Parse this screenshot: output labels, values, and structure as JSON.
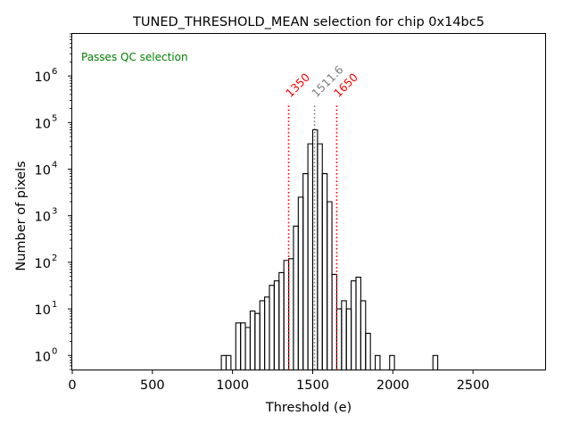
{
  "chart_data": {
    "type": "histogram",
    "title": "TUNED_THRESHOLD_MEAN selection for chip 0x14bc5",
    "xlabel": "Threshold (e)",
    "ylabel": "Number of pixels",
    "xlim": [
      0,
      2950
    ],
    "ylim": [
      0.5,
      8000000
    ],
    "yscale": "log",
    "grid": false,
    "x_ticks": [
      0,
      500,
      1000,
      1500,
      2000,
      2500
    ],
    "x_tick_labels": [
      "0",
      "500",
      "1000",
      "1500",
      "2000",
      "2500"
    ],
    "y_ticks": [
      1,
      10,
      100,
      1000,
      10000,
      100000,
      1000000
    ],
    "y_tick_labels": [
      {
        "base": "10",
        "exp": "0"
      },
      {
        "base": "10",
        "exp": "1"
      },
      {
        "base": "10",
        "exp": "2"
      },
      {
        "base": "10",
        "exp": "3"
      },
      {
        "base": "10",
        "exp": "4"
      },
      {
        "base": "10",
        "exp": "5"
      },
      {
        "base": "10",
        "exp": "6"
      }
    ],
    "annotation": {
      "text": "Passes QC selection",
      "color": "#008000"
    },
    "cut_lines": [
      {
        "x": 1350,
        "label": "1350",
        "color": "#ff0000",
        "style": "dotted"
      },
      {
        "x": 1511.6,
        "label": "1511.6",
        "color": "#808080",
        "style": "dotted"
      },
      {
        "x": 1650,
        "label": "1650",
        "color": "#ff0000",
        "style": "dotted"
      }
    ],
    "bin_width": 30,
    "bins": [
      {
        "x": 930,
        "count": 1
      },
      {
        "x": 960,
        "count": 1
      },
      {
        "x": 1020,
        "count": 5
      },
      {
        "x": 1050,
        "count": 5
      },
      {
        "x": 1080,
        "count": 4
      },
      {
        "x": 1110,
        "count": 9
      },
      {
        "x": 1140,
        "count": 8
      },
      {
        "x": 1170,
        "count": 15
      },
      {
        "x": 1200,
        "count": 18
      },
      {
        "x": 1230,
        "count": 32
      },
      {
        "x": 1260,
        "count": 40
      },
      {
        "x": 1290,
        "count": 60
      },
      {
        "x": 1320,
        "count": 110
      },
      {
        "x": 1350,
        "count": 120
      },
      {
        "x": 1380,
        "count": 600
      },
      {
        "x": 1410,
        "count": 2500
      },
      {
        "x": 1440,
        "count": 8000
      },
      {
        "x": 1470,
        "count": 35000
      },
      {
        "x": 1500,
        "count": 70000
      },
      {
        "x": 1530,
        "count": 35000
      },
      {
        "x": 1560,
        "count": 8000
      },
      {
        "x": 1590,
        "count": 2000
      },
      {
        "x": 1620,
        "count": 55
      },
      {
        "x": 1650,
        "count": 10
      },
      {
        "x": 1680,
        "count": 15
      },
      {
        "x": 1710,
        "count": 10
      },
      {
        "x": 1740,
        "count": 40
      },
      {
        "x": 1770,
        "count": 48
      },
      {
        "x": 1800,
        "count": 15
      },
      {
        "x": 1830,
        "count": 3
      },
      {
        "x": 1890,
        "count": 1
      },
      {
        "x": 1980,
        "count": 1
      },
      {
        "x": 2250,
        "count": 1
      }
    ],
    "colors": {
      "line": "#000000",
      "text": "#000000",
      "cut": "#ff0000",
      "mean": "#808080",
      "annotation": "#008000"
    }
  }
}
